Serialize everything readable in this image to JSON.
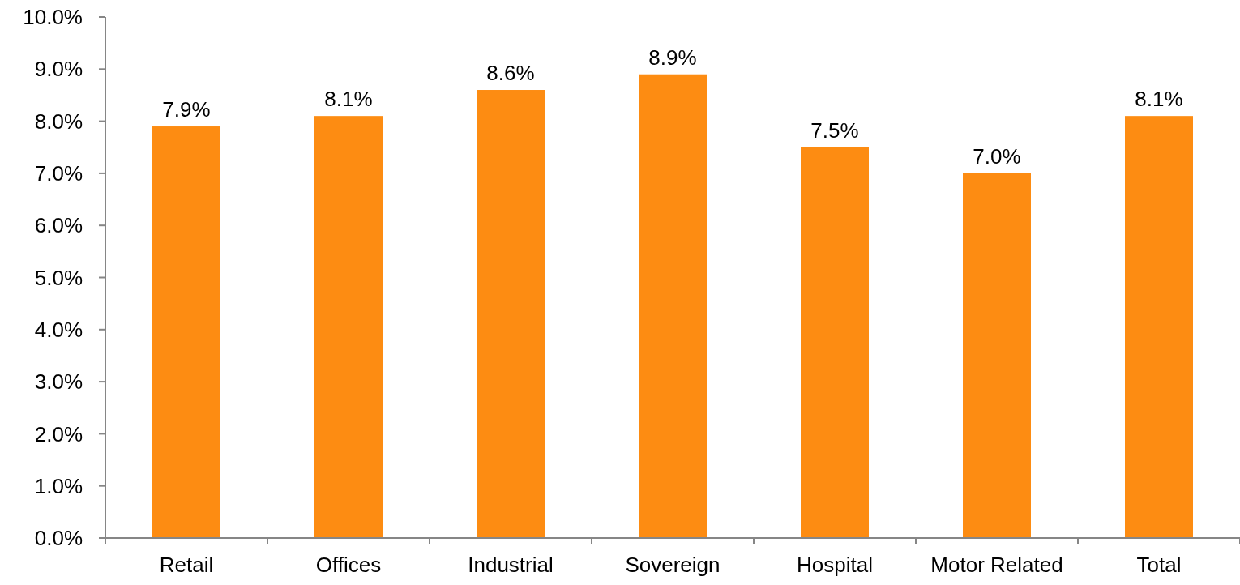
{
  "chart_data": {
    "type": "bar",
    "categories": [
      "Retail",
      "Offices",
      "Industrial",
      "Sovereign",
      "Hospital",
      "Motor Related",
      "Total"
    ],
    "values": [
      7.9,
      8.1,
      8.6,
      8.9,
      7.5,
      7.0,
      8.1
    ],
    "value_labels": [
      "7.9%",
      "8.1%",
      "8.6%",
      "8.9%",
      "7.5%",
      "7.0%",
      "8.1%"
    ],
    "color": "#fd8c12",
    "ylim": [
      0,
      10
    ],
    "yticks": [
      {
        "value": 0,
        "label": "0.0%"
      },
      {
        "value": 1,
        "label": "1.0%"
      },
      {
        "value": 2,
        "label": "2.0%"
      },
      {
        "value": 3,
        "label": "3.0%"
      },
      {
        "value": 4,
        "label": "4.0%"
      },
      {
        "value": 5,
        "label": "5.0%"
      },
      {
        "value": 6,
        "label": "6.0%"
      },
      {
        "value": 7,
        "label": "7.0%"
      },
      {
        "value": 8,
        "label": "8.0%"
      },
      {
        "value": 9,
        "label": "9.0%"
      },
      {
        "value": 10,
        "label": "10.0%"
      }
    ],
    "grid": false
  }
}
